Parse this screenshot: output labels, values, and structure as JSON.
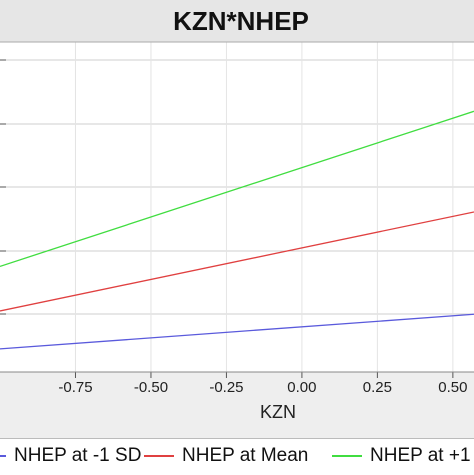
{
  "chart_data": {
    "type": "line",
    "title": "KZN*NHEP",
    "xlabel": "KZN",
    "ylabel": "",
    "x_ticks": [
      "-0.75",
      "-0.50",
      "-0.25",
      "0.00",
      "0.25",
      "0.50"
    ],
    "xlim": [
      -1.0,
      0.57
    ],
    "ylim": [
      0,
      1
    ],
    "grid": true,
    "legend_position": "bottom",
    "series": [
      {
        "name": "NHEP at -1 SD",
        "color": "#5a5adc",
        "x": [
          -1.0,
          0.57
        ],
        "y": [
          0.07,
          0.175
        ]
      },
      {
        "name": "NHEP at Mean",
        "color": "#e04040",
        "x": [
          -1.0,
          0.57
        ],
        "y": [
          0.185,
          0.485
        ]
      },
      {
        "name": "NHEP at +1",
        "color": "#40dd40",
        "x": [
          -1.0,
          0.57
        ],
        "y": [
          0.32,
          0.79
        ]
      }
    ]
  }
}
